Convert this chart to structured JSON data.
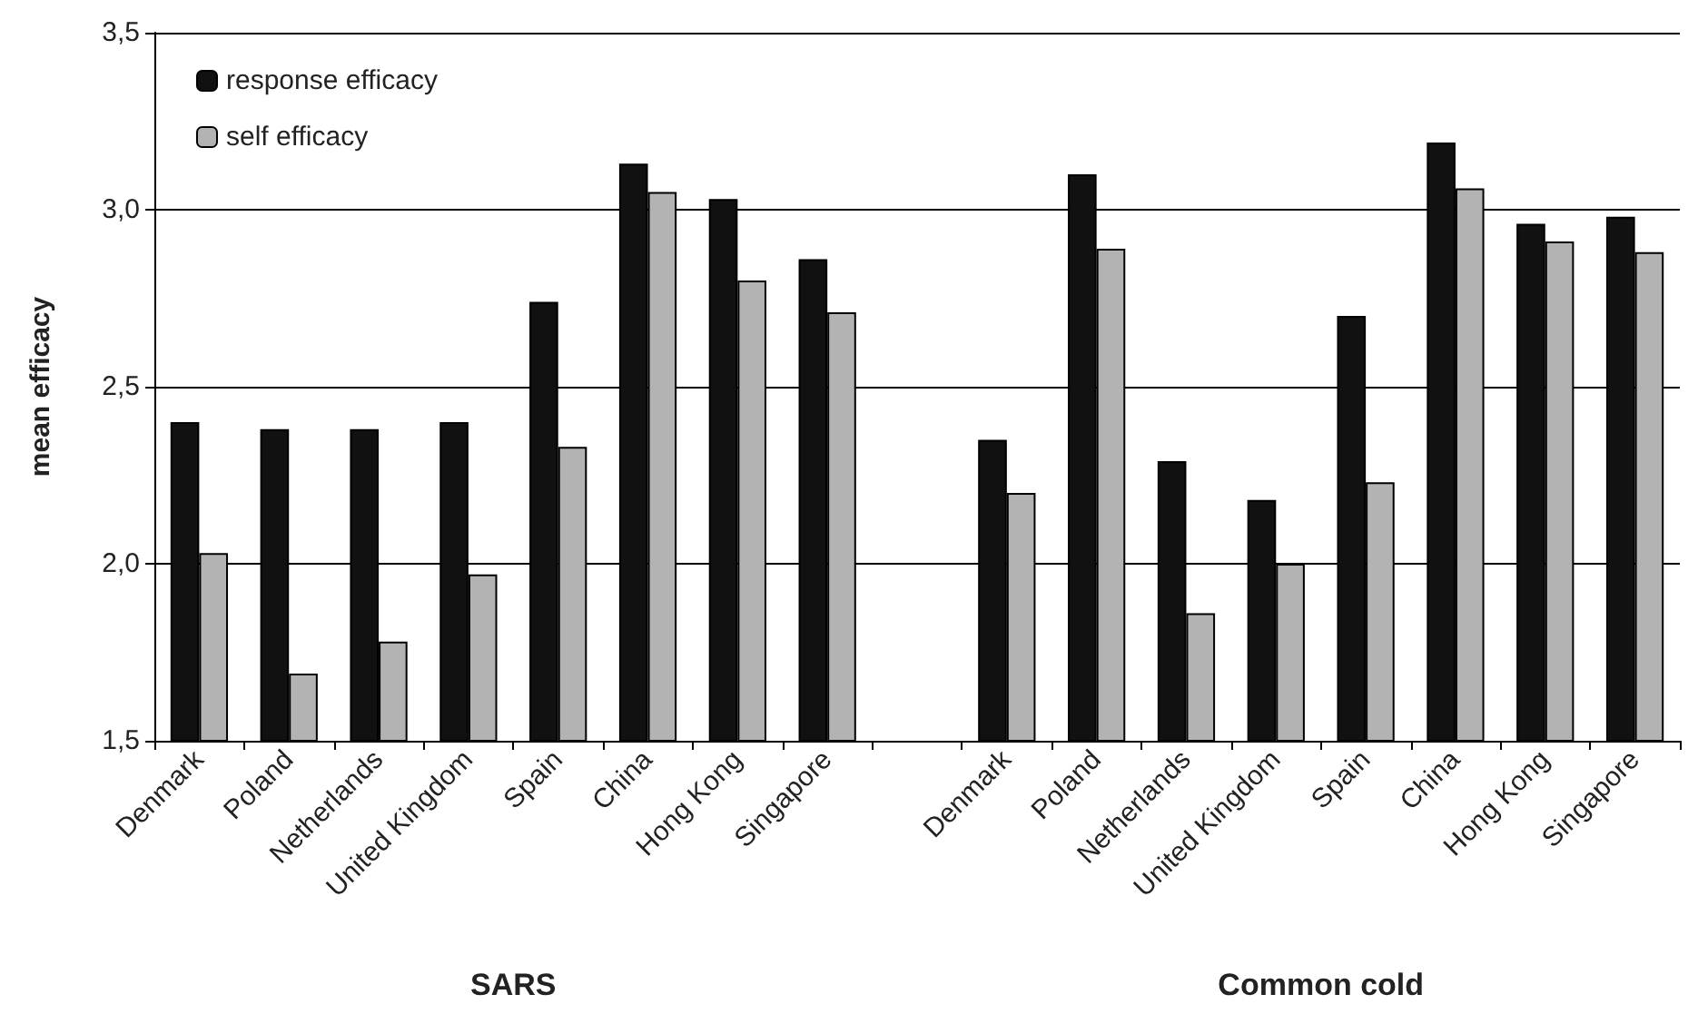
{
  "chart_data": {
    "type": "bar",
    "ylabel": "mean efficacy",
    "annotations": [
      "SARS",
      "Common cold"
    ],
    "categories": [
      "Denmark",
      "Poland",
      "Netherlands",
      "United Kingdom",
      "Spain",
      "China",
      "Hong Kong",
      "Singapore",
      null,
      "Denmark",
      "Poland",
      "Netherlands",
      "United Kingdom",
      "Spain",
      "China",
      "Hong Kong",
      "Singapore"
    ],
    "series": [
      {
        "name": "response efficacy",
        "color": "#111111",
        "values": [
          2.4,
          2.38,
          2.38,
          2.4,
          2.74,
          3.13,
          3.03,
          2.86,
          null,
          2.35,
          3.1,
          2.29,
          2.18,
          2.7,
          3.19,
          2.96,
          2.98
        ]
      },
      {
        "name": "self efficacy",
        "color": "#b3b3b3",
        "values": [
          2.03,
          1.69,
          1.78,
          1.97,
          2.33,
          3.05,
          2.8,
          2.71,
          null,
          2.2,
          2.89,
          1.86,
          2.0,
          2.23,
          3.06,
          2.91,
          2.88
        ]
      }
    ],
    "ylim": [
      1.5,
      3.5
    ],
    "yticks": [
      {
        "value": 1.5,
        "label": "1,5"
      },
      {
        "value": 2.0,
        "label": "2,0"
      },
      {
        "value": 2.5,
        "label": "2,5"
      },
      {
        "value": 3.0,
        "label": "3,0"
      },
      {
        "value": 3.5,
        "label": "3,5"
      }
    ],
    "grid": true,
    "legend": "top left"
  }
}
